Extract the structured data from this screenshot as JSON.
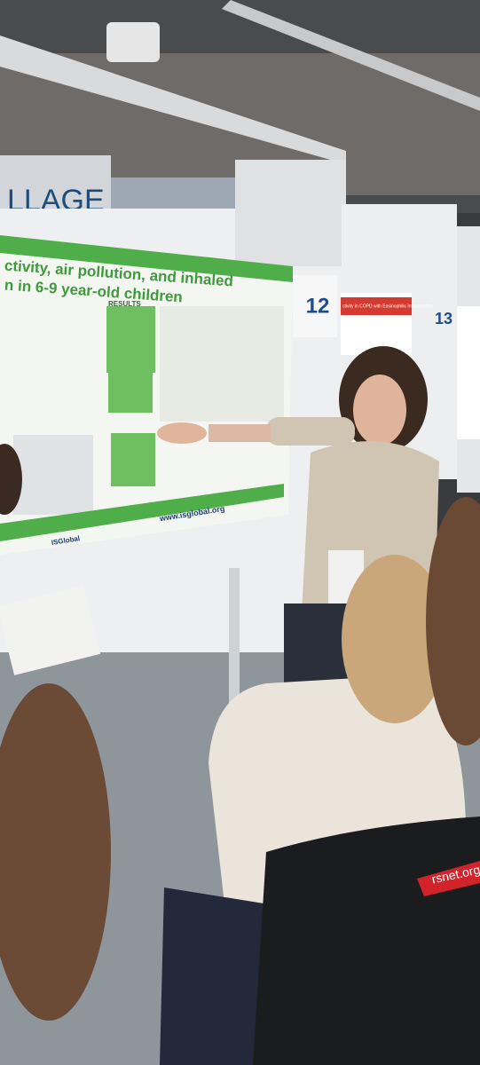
{
  "scene": {
    "sign": "LLAGE",
    "board_numbers": [
      "12",
      "13"
    ],
    "poster": {
      "title_lines": [
        "ctivity, air pollution, and inhaled",
        "n in 6-9 year-old children"
      ],
      "section": "RESULTS",
      "url": "www.isglobal.org",
      "logo": "ISGlobal"
    },
    "right_poster_title": "ctivity in COPD with Eosinophilic Inflammation",
    "lanyard": "rsnet.org"
  }
}
